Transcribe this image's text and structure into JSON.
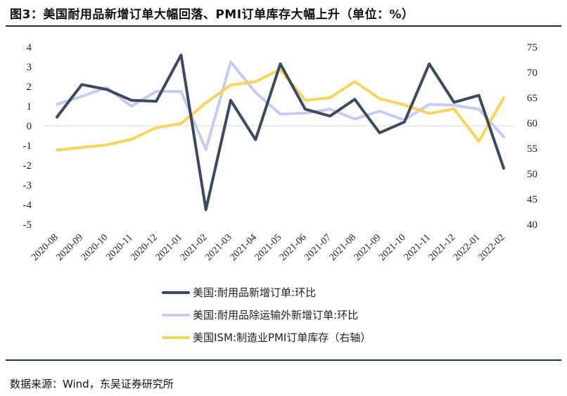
{
  "title": "图3：美国耐用品新增订单大幅回落、PMI订单库存大幅上升（单位：%）",
  "source": "数据来源：Wind，东吴证券研究所",
  "colors": {
    "dark": "#3d4a5e",
    "lavender": "#c9caf3",
    "yellow": "#f5d65c",
    "rule": "#1f2d56"
  },
  "chart_data": {
    "type": "line",
    "categories": [
      "2020-08",
      "2020-09",
      "2020-10",
      "2020-11",
      "2020-12",
      "2021-01",
      "2021-02",
      "2021-03",
      "2021-04",
      "2021-05",
      "2021-06",
      "2021-07",
      "2021-08",
      "2021-09",
      "2021-10",
      "2021-11",
      "2021-12",
      "2022-01",
      "2022-02"
    ],
    "left_axis": {
      "ylim": [
        -5,
        4
      ],
      "ticks": [
        4,
        3,
        2,
        1,
        0,
        -1,
        -2,
        -3,
        -4,
        -5
      ]
    },
    "right_axis": {
      "ylim": [
        40,
        75
      ],
      "ticks": [
        75,
        70,
        65,
        60,
        55,
        50,
        45,
        40
      ]
    },
    "grid": false,
    "legend_position": "bottom",
    "series": [
      {
        "name": "美国:耐用品新增订单:环比",
        "axis": "left",
        "color": "#3d4a5e",
        "values": [
          0.45,
          2.1,
          1.85,
          1.3,
          1.25,
          3.6,
          -4.25,
          1.3,
          -0.7,
          3.15,
          0.85,
          0.5,
          1.35,
          -0.35,
          0.2,
          3.15,
          1.2,
          1.55,
          -2.15
        ]
      },
      {
        "name": "美国:耐用品除运输外新增订单:环比",
        "axis": "left",
        "color": "#c9caf3",
        "values": [
          1.1,
          1.5,
          1.95,
          1.0,
          1.75,
          1.75,
          -1.2,
          3.25,
          1.7,
          0.6,
          0.65,
          0.85,
          0.35,
          0.75,
          0.3,
          1.1,
          1.05,
          0.85,
          -0.55
        ]
      },
      {
        "name": "美国ISM:制造业PMI订单库存（右轴）",
        "axis": "right",
        "color": "#f5d65c",
        "values": [
          54.7,
          55.2,
          55.7,
          56.8,
          59.1,
          59.9,
          64.0,
          67.5,
          68.2,
          70.6,
          64.5,
          65.0,
          68.2,
          64.8,
          63.6,
          61.9,
          62.8,
          56.4,
          65.0
        ]
      }
    ]
  }
}
